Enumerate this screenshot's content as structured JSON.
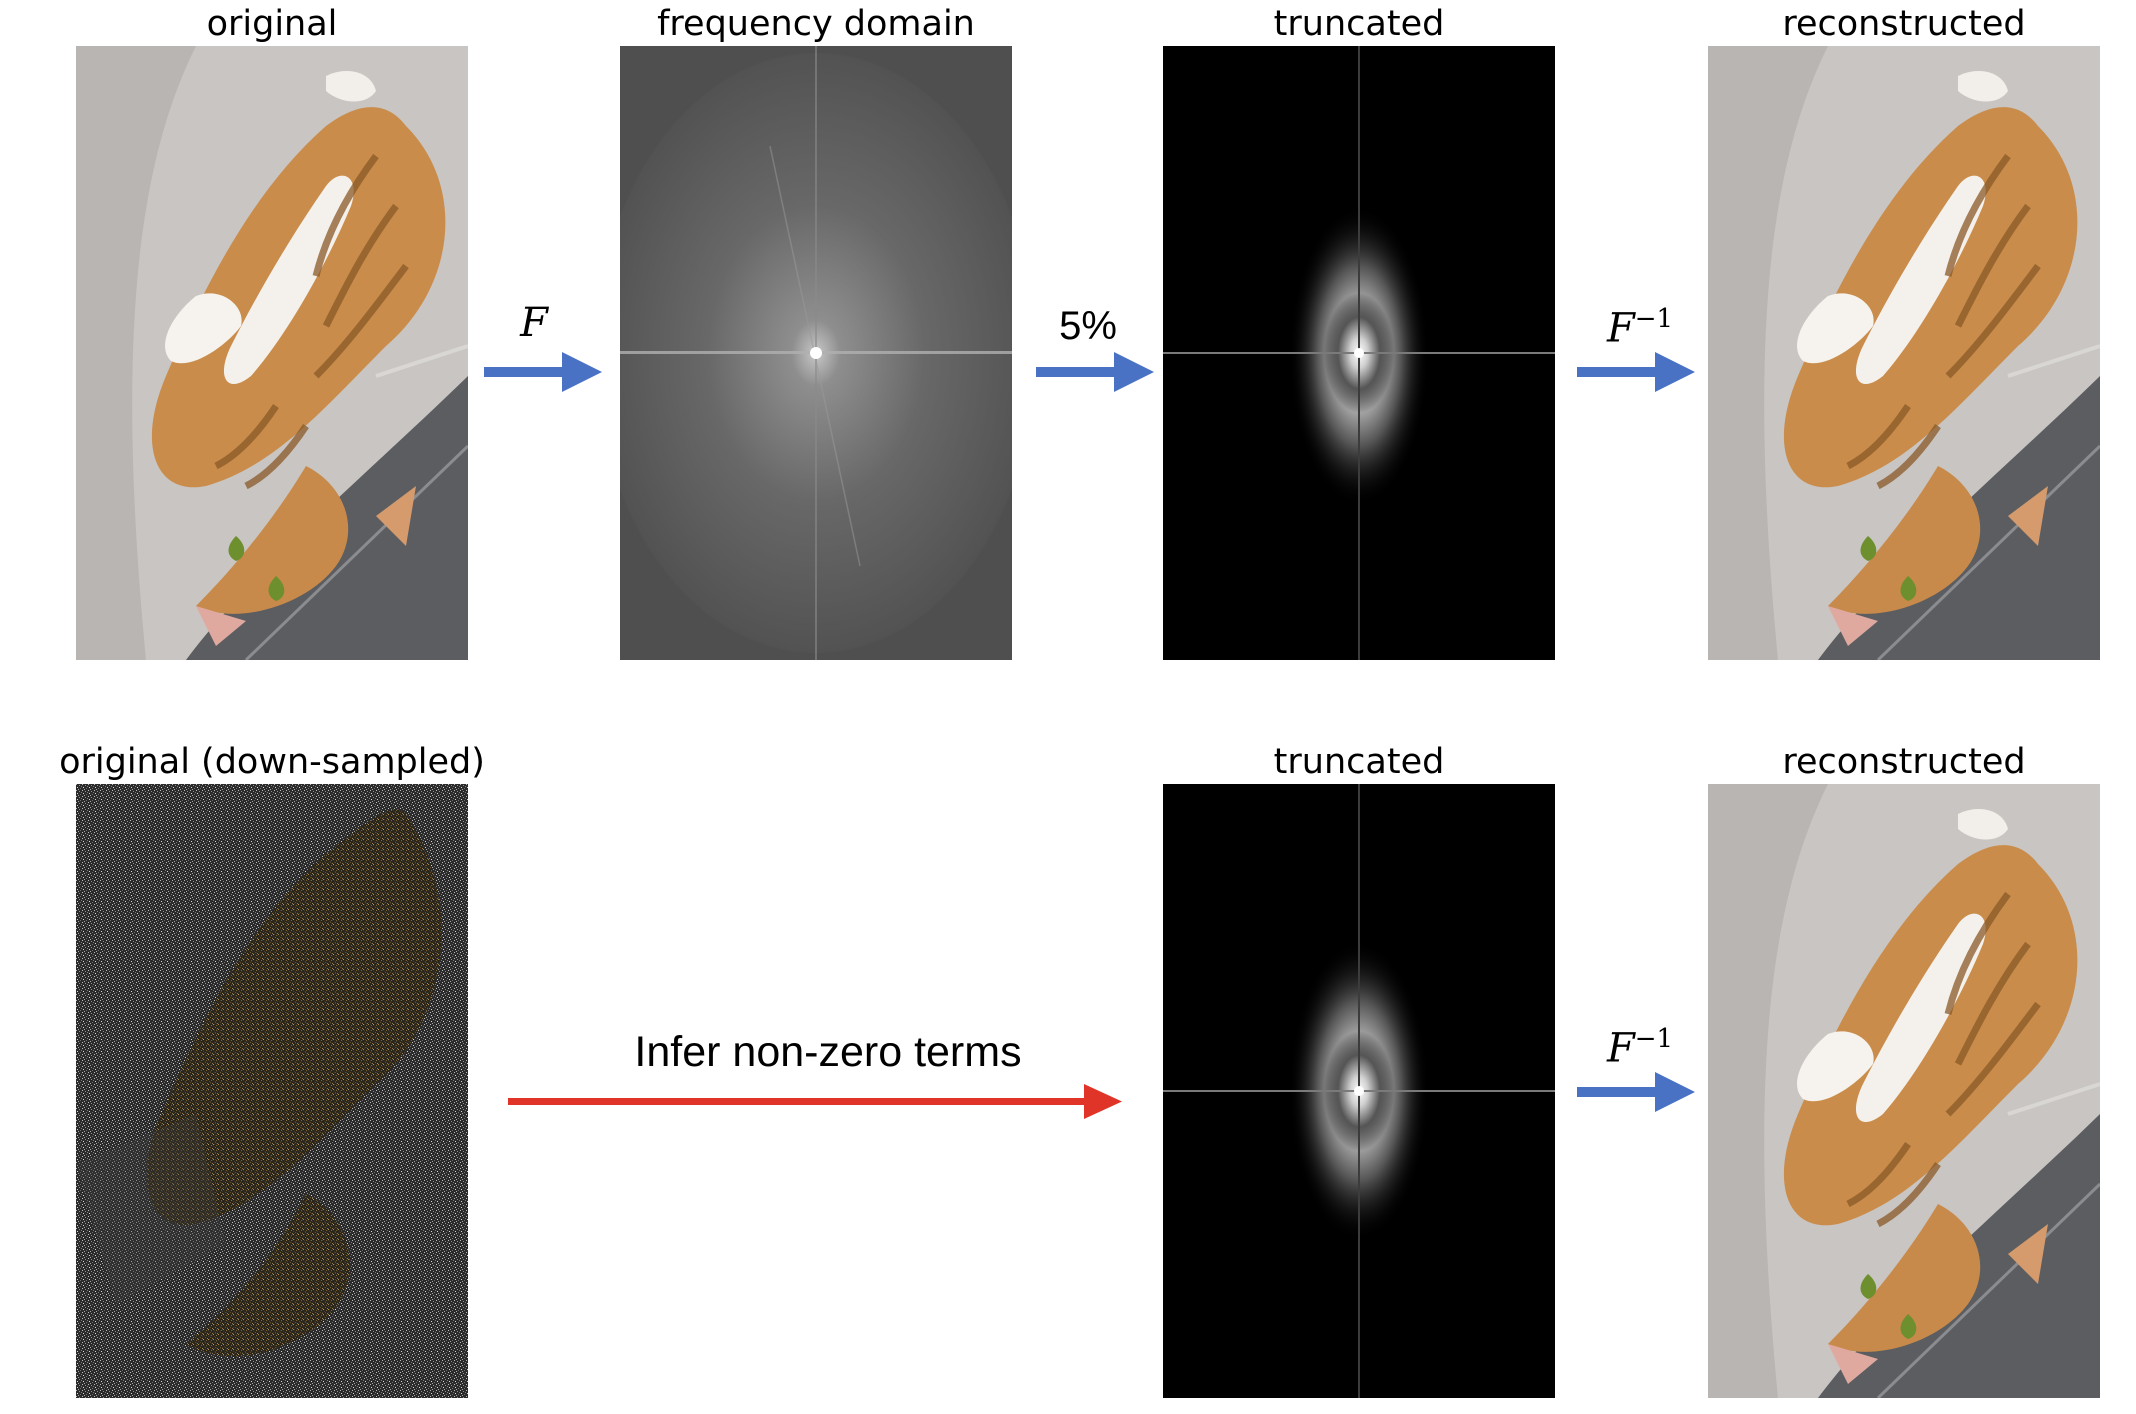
{
  "colors": {
    "arrow_blue": "#4a72c4",
    "arrow_red": "#e03428",
    "spectrum_gray": "#5a5a5a",
    "truncated_black": "#000000"
  },
  "row1": {
    "titles": {
      "original": "original",
      "frequency": "frequency domain",
      "truncated": "truncated",
      "reconstructed": "reconstructed"
    },
    "arrows": {
      "forward": "F",
      "keep": "5%",
      "inverse_base": "F",
      "inverse_exp": "−1"
    }
  },
  "row2": {
    "titles": {
      "original": "original (down-sampled)",
      "truncated": "truncated",
      "reconstructed": "reconstructed"
    },
    "arrows": {
      "infer": "Infer non-zero terms",
      "inverse_base": "F",
      "inverse_exp": "−1"
    }
  },
  "image_contents": {
    "cat_photo": "orange and white tabby cat lying upside down on grey tiles",
    "noisy_photo": "noisy down-sampled version of the cat photo",
    "spectrum": "log-magnitude Fourier spectrum",
    "truncated_spectrum": "top 5% Fourier coefficients on black"
  }
}
